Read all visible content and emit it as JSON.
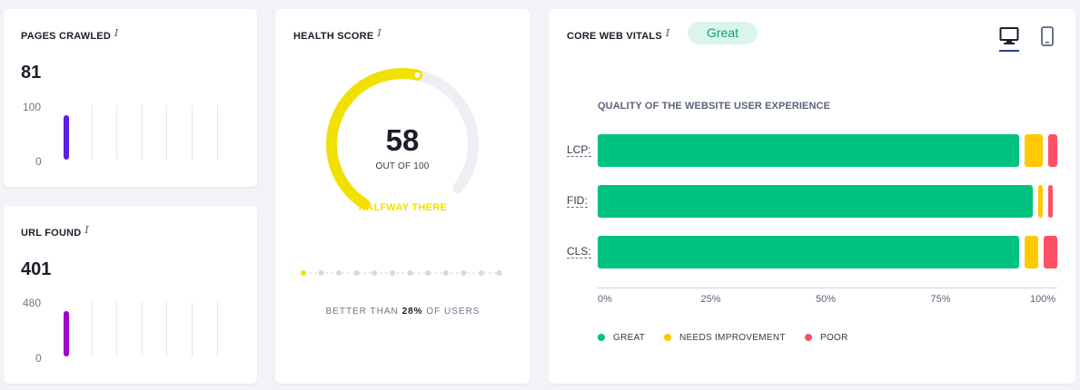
{
  "pages_crawled": {
    "title": "PAGES CRAWLED",
    "info": "i",
    "value": "81",
    "axis_max": "100",
    "axis_min": "0",
    "bar_fraction": 0.81,
    "bar_color": "#5a1fe0"
  },
  "url_found": {
    "title": "URL FOUND",
    "info": "i",
    "value": "401",
    "axis_max": "480",
    "axis_min": "0",
    "bar_fraction": 0.835,
    "bar_color": "#a100c9"
  },
  "health_score": {
    "title": "HEALTH SCORE",
    "info": "i",
    "score": "58",
    "out_of": "OUT OF 100",
    "score_fraction": 0.58,
    "status": "HALFWAY THERE",
    "better_than_prefix": "BETTER THAN",
    "better_than_value": "28%",
    "better_than_suffix": "OF USERS",
    "progress_dots_total": 12,
    "progress_dots_active": 1,
    "accent_color": "#f0e100"
  },
  "core_web_vitals": {
    "title": "CORE WEB VITALS",
    "info": "i",
    "badge": "Great",
    "devices": [
      {
        "name": "desktop",
        "icon": "desktop-icon",
        "active": true
      },
      {
        "name": "mobile",
        "icon": "mobile-icon",
        "active": false
      }
    ],
    "chart_data": {
      "type": "bar",
      "orientation": "horizontal-stacked",
      "title": "QUALITY OF THE WEBSITE USER EXPERIENCE",
      "categories": [
        "LCP:",
        "FID:",
        "CLS:"
      ],
      "series": [
        {
          "name": "GREAT",
          "color": "#00c382",
          "values": [
            94,
            97,
            94
          ]
        },
        {
          "name": "NEEDS IMPROVEMENT",
          "color": "#ffc800",
          "values": [
            4,
            1,
            3
          ]
        },
        {
          "name": "POOR",
          "color": "#ff4f64",
          "values": [
            2,
            1,
            3
          ]
        }
      ],
      "x_ticks": [
        "0%",
        "25%",
        "50%",
        "75%",
        "100%"
      ],
      "xlim": [
        0,
        100
      ],
      "legend_position": "bottom-left"
    }
  }
}
